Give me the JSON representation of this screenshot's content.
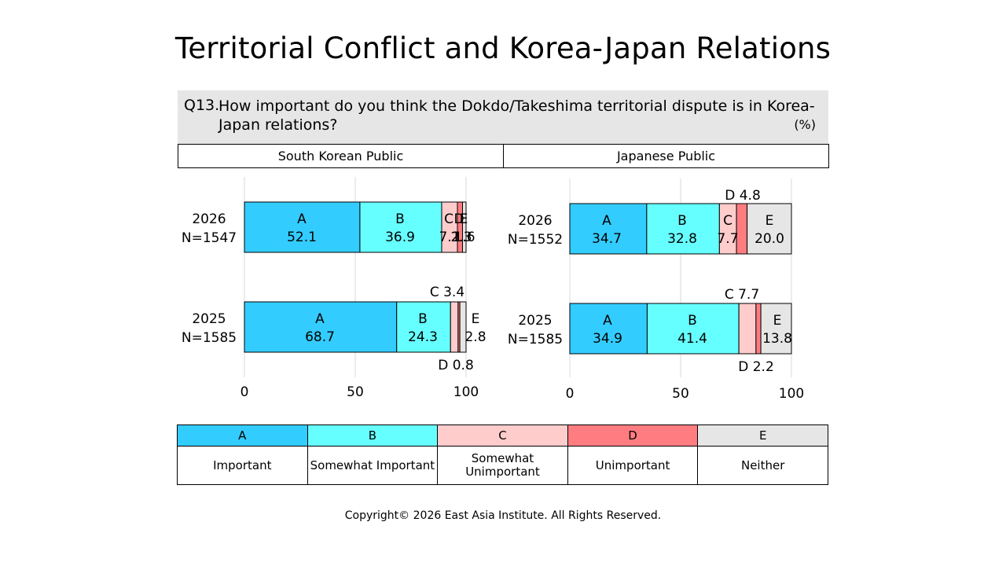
{
  "title": "Territorial Conflict and Korea-Japan Relations",
  "question": {
    "number": "Q13.",
    "text": "How important do you think the Dokdo/Takeshima territorial dispute is in Korea-Japan relations?",
    "unit": "(%)"
  },
  "panels": [
    "South Korean Public",
    "Japanese Public"
  ],
  "colors": {
    "A": "#33ccff",
    "B": "#66ffff",
    "C": "#ffcccc",
    "D": "#ff7c80",
    "E": "#e6e6e6"
  },
  "legend": [
    {
      "key": "A",
      "label": "Important"
    },
    {
      "key": "B",
      "label": "Somewhat Important"
    },
    {
      "key": "C",
      "label": "Somewhat Unimportant"
    },
    {
      "key": "D",
      "label": "Unimportant"
    },
    {
      "key": "E",
      "label": "Neither"
    }
  ],
  "chart_data": [
    {
      "type": "bar",
      "orientation": "horizontal-stacked",
      "panel": "South Korean Public",
      "xlim": [
        0,
        100
      ],
      "xticks": [
        "0",
        "50",
        "100"
      ],
      "categories": [
        {
          "year": "2026",
          "n": "N=1547"
        },
        {
          "year": "2025",
          "n": "N=1585"
        }
      ],
      "series": [
        {
          "name": "A",
          "values": [
            52.1,
            68.7
          ]
        },
        {
          "name": "B",
          "values": [
            36.9,
            24.3
          ]
        },
        {
          "name": "C",
          "values": [
            7.1,
            3.4
          ]
        },
        {
          "name": "D",
          "values": [
            2.3,
            0.8
          ]
        },
        {
          "name": "E",
          "values": [
            1.6,
            2.8
          ]
        }
      ],
      "overlap_text": [
        "C",
        "7.1",
        "D",
        "2.3",
        "E",
        "1.6"
      ]
    },
    {
      "type": "bar",
      "orientation": "horizontal-stacked",
      "panel": "Japanese Public",
      "xlim": [
        0,
        100
      ],
      "xticks": [
        "0",
        "50",
        "100"
      ],
      "categories": [
        {
          "year": "2026",
          "n": "N=1552"
        },
        {
          "year": "2025",
          "n": "N=1585"
        }
      ],
      "series": [
        {
          "name": "A",
          "values": [
            34.7,
            34.9
          ]
        },
        {
          "name": "B",
          "values": [
            32.8,
            41.4
          ]
        },
        {
          "name": "C",
          "values": [
            7.7,
            7.7
          ]
        },
        {
          "name": "D",
          "values": [
            4.8,
            2.2
          ]
        },
        {
          "name": "E",
          "values": [
            20.0,
            13.8
          ]
        }
      ]
    }
  ],
  "copyright": "Copyright© 2026 East Asia Institute. All Rights Reserved."
}
